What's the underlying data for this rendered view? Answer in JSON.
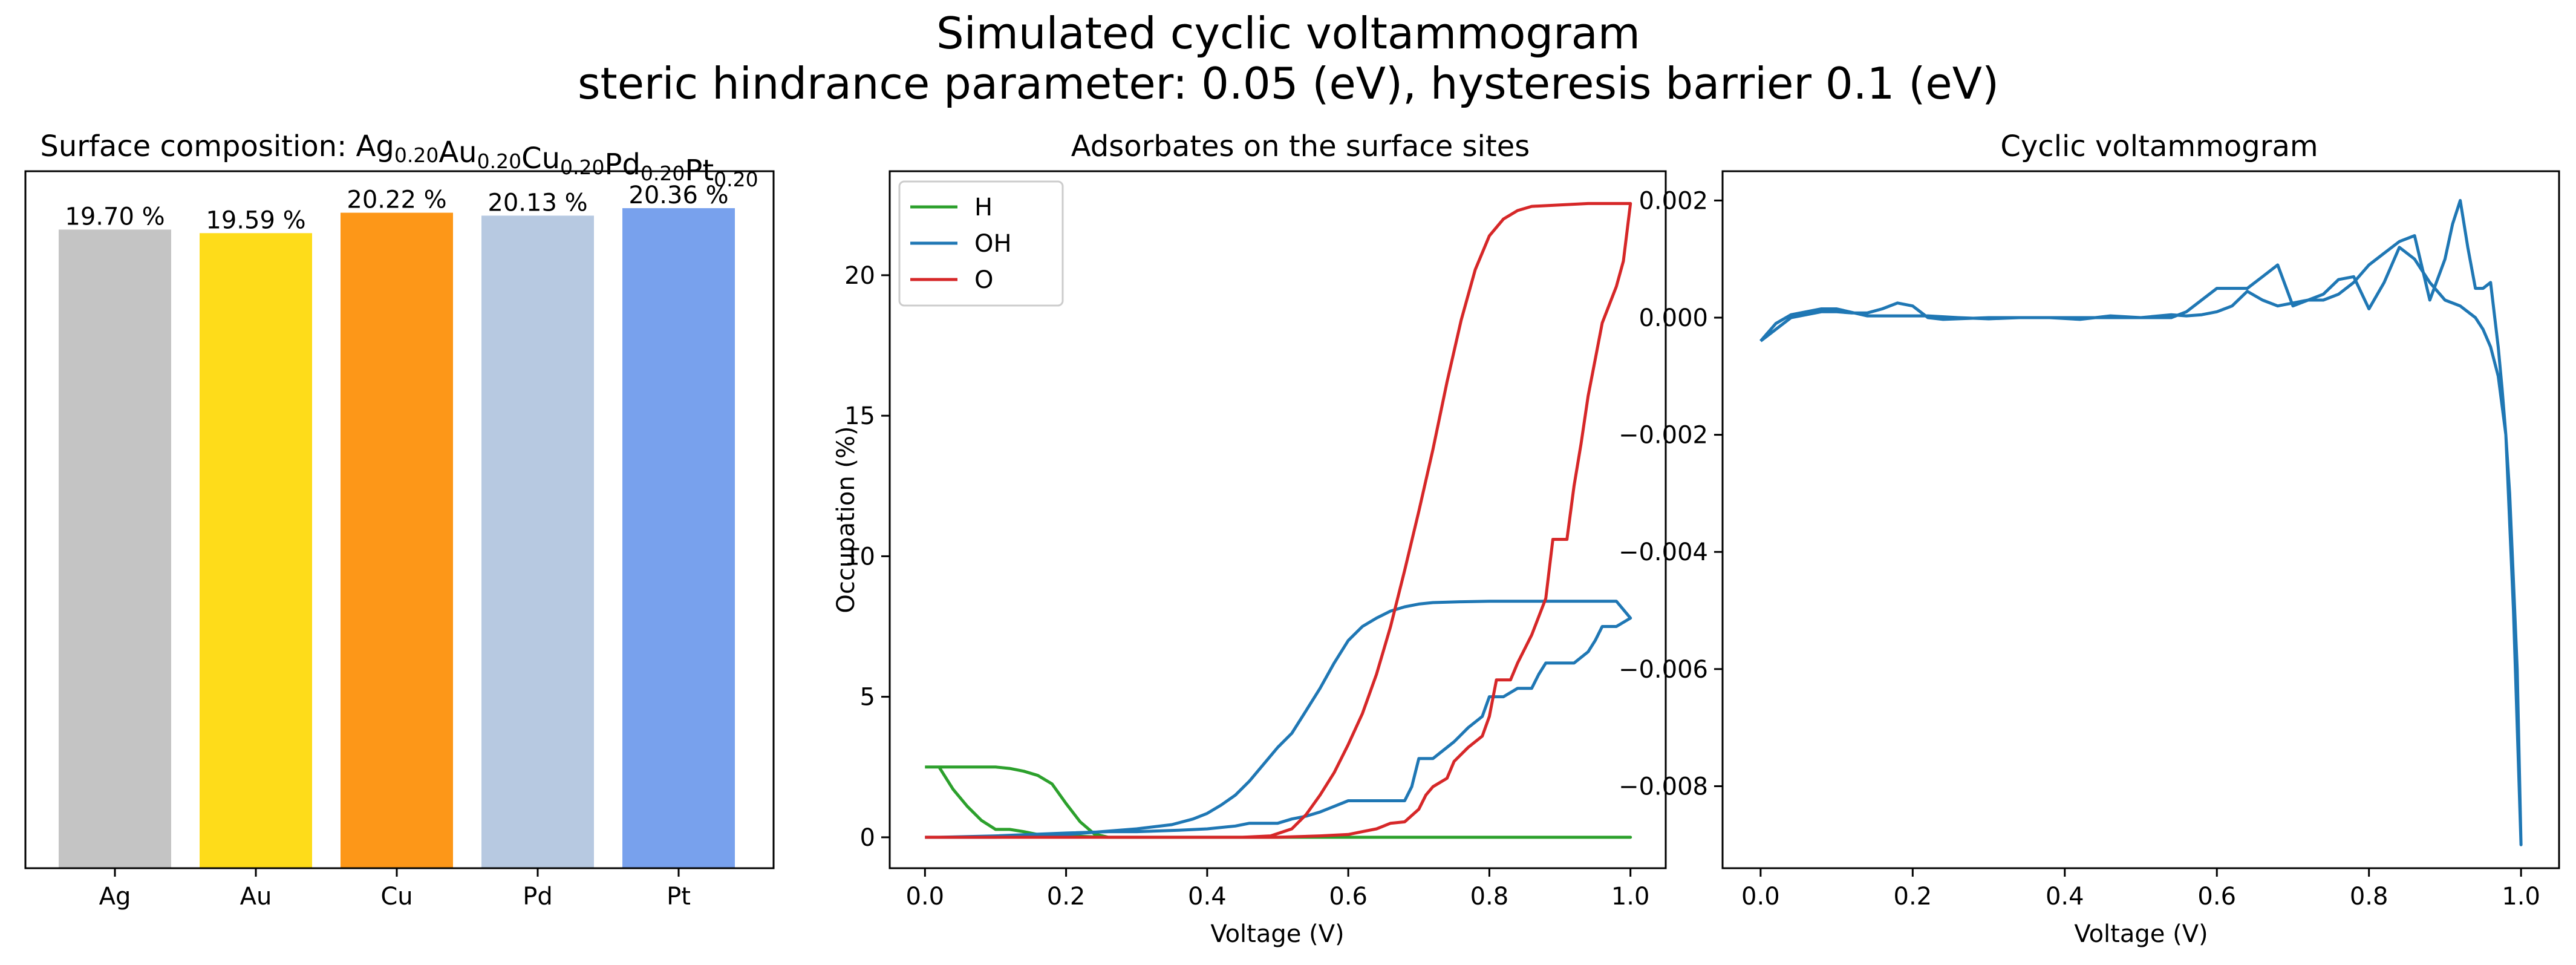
{
  "figure": {
    "title_line1": "Simulated cyclic voltammogram",
    "title_line2": "steric hindrance parameter: 0.05 (eV), hysteresis barrier 0.1 (eV)"
  },
  "chart_data": [
    {
      "type": "bar",
      "title_prefix": "Surface composition: ",
      "title_elements": [
        {
          "symbol": "Ag",
          "sub": "0.20"
        },
        {
          "symbol": "Au",
          "sub": "0.20"
        },
        {
          "symbol": "Cu",
          "sub": "0.20"
        },
        {
          "symbol": "Pd",
          "sub": "0.20"
        },
        {
          "symbol": "Pt",
          "sub": "0.20"
        }
      ],
      "categories": [
        "Ag",
        "Au",
        "Cu",
        "Pd",
        "Pt"
      ],
      "values": [
        19.7,
        19.59,
        20.22,
        20.13,
        20.36
      ],
      "data_labels": [
        "19.70 %",
        "19.59 %",
        "20.22 %",
        "20.13 %",
        "20.36 %"
      ],
      "colors": [
        "#c4c4c4",
        "#fedc1a",
        "#fd9718",
        "#b7c9e1",
        "#78a1ed"
      ],
      "ylim": [
        0,
        21.5
      ],
      "y_ticks_visible": false
    },
    {
      "type": "line",
      "title": "Adsorbates on the surface sites",
      "xlabel": "Voltage (V)",
      "ylabel": "Occupation (%)",
      "xlim": [
        -0.05,
        1.05
      ],
      "ylim": [
        -1.1,
        23.7
      ],
      "x_ticks": [
        "0.0",
        "0.2",
        "0.4",
        "0.6",
        "0.8",
        "1.0"
      ],
      "x_tick_values": [
        0,
        0.2,
        0.4,
        0.6,
        0.8,
        1.0
      ],
      "y_ticks": [
        "0",
        "5",
        "10",
        "15",
        "20"
      ],
      "y_tick_values": [
        0,
        5,
        10,
        15,
        20
      ],
      "legend_position": "top-left",
      "series": [
        {
          "name": "H",
          "color": "#2ca02c",
          "points": [
            [
              0,
              2.5
            ],
            [
              0.02,
              2.5
            ],
            [
              0.04,
              2.5
            ],
            [
              0.06,
              2.5
            ],
            [
              0.1,
              2.5
            ],
            [
              0.12,
              2.45
            ],
            [
              0.14,
              2.35
            ],
            [
              0.16,
              2.2
            ],
            [
              0.18,
              1.9
            ],
            [
              0.2,
              1.2
            ],
            [
              0.22,
              0.55
            ],
            [
              0.24,
              0.12
            ],
            [
              0.26,
              0.0
            ],
            [
              1.0,
              0.0
            ],
            [
              0.5,
              0.0
            ],
            [
              0.26,
              0.0
            ],
            [
              0.2,
              0.05
            ],
            [
              0.16,
              0.1
            ],
            [
              0.14,
              0.2
            ],
            [
              0.12,
              0.28
            ],
            [
              0.1,
              0.28
            ],
            [
              0.08,
              0.6
            ],
            [
              0.06,
              1.1
            ],
            [
              0.04,
              1.7
            ],
            [
              0.02,
              2.5
            ]
          ]
        },
        {
          "name": "OH",
          "color": "#1f77b4",
          "points": [
            [
              0,
              0
            ],
            [
              0.1,
              0
            ],
            [
              0.2,
              0.1
            ],
            [
              0.25,
              0.2
            ],
            [
              0.3,
              0.3
            ],
            [
              0.35,
              0.45
            ],
            [
              0.38,
              0.65
            ],
            [
              0.4,
              0.85
            ],
            [
              0.42,
              1.15
            ],
            [
              0.44,
              1.5
            ],
            [
              0.46,
              2.0
            ],
            [
              0.48,
              2.6
            ],
            [
              0.5,
              3.2
            ],
            [
              0.52,
              3.7
            ],
            [
              0.54,
              4.5
            ],
            [
              0.56,
              5.3
            ],
            [
              0.58,
              6.2
            ],
            [
              0.6,
              7.0
            ],
            [
              0.62,
              7.5
            ],
            [
              0.64,
              7.8
            ],
            [
              0.66,
              8.05
            ],
            [
              0.68,
              8.2
            ],
            [
              0.7,
              8.3
            ],
            [
              0.72,
              8.35
            ],
            [
              0.76,
              8.38
            ],
            [
              0.8,
              8.4
            ],
            [
              0.9,
              8.4
            ],
            [
              0.98,
              8.4
            ],
            [
              1.0,
              7.8
            ],
            [
              0.98,
              7.5
            ],
            [
              0.96,
              7.5
            ],
            [
              0.95,
              7.0
            ],
            [
              0.94,
              6.6
            ],
            [
              0.92,
              6.2
            ],
            [
              0.91,
              6.2
            ],
            [
              0.9,
              6.2
            ],
            [
              0.88,
              6.2
            ],
            [
              0.87,
              5.8
            ],
            [
              0.86,
              5.3
            ],
            [
              0.84,
              5.3
            ],
            [
              0.82,
              5.0
            ],
            [
              0.81,
              5.0
            ],
            [
              0.8,
              5.0
            ],
            [
              0.79,
              4.3
            ],
            [
              0.77,
              3.9
            ],
            [
              0.75,
              3.4
            ],
            [
              0.73,
              3.0
            ],
            [
              0.72,
              2.8
            ],
            [
              0.71,
              2.8
            ],
            [
              0.7,
              2.8
            ],
            [
              0.69,
              1.8
            ],
            [
              0.68,
              1.3
            ],
            [
              0.66,
              1.3
            ],
            [
              0.62,
              1.3
            ],
            [
              0.6,
              1.3
            ],
            [
              0.58,
              1.1
            ],
            [
              0.56,
              0.9
            ],
            [
              0.54,
              0.75
            ],
            [
              0.52,
              0.65
            ],
            [
              0.5,
              0.5
            ],
            [
              0.46,
              0.5
            ],
            [
              0.44,
              0.4
            ],
            [
              0.4,
              0.3
            ],
            [
              0.36,
              0.25
            ],
            [
              0.3,
              0.2
            ],
            [
              0.26,
              0.2
            ],
            [
              0.2,
              0.15
            ],
            [
              0.1,
              0.05
            ],
            [
              0.02,
              0.0
            ]
          ]
        },
        {
          "name": "O",
          "color": "#d62728",
          "points": [
            [
              0,
              0
            ],
            [
              0.45,
              0
            ],
            [
              0.49,
              0.05
            ],
            [
              0.52,
              0.3
            ],
            [
              0.54,
              0.8
            ],
            [
              0.56,
              1.5
            ],
            [
              0.58,
              2.3
            ],
            [
              0.6,
              3.3
            ],
            [
              0.62,
              4.4
            ],
            [
              0.64,
              5.8
            ],
            [
              0.66,
              7.5
            ],
            [
              0.68,
              9.5
            ],
            [
              0.7,
              11.6
            ],
            [
              0.72,
              13.8
            ],
            [
              0.74,
              16.2
            ],
            [
              0.76,
              18.4
            ],
            [
              0.78,
              20.2
            ],
            [
              0.8,
              21.4
            ],
            [
              0.82,
              22.0
            ],
            [
              0.84,
              22.3
            ],
            [
              0.86,
              22.45
            ],
            [
              0.9,
              22.5
            ],
            [
              0.94,
              22.55
            ],
            [
              0.98,
              22.55
            ],
            [
              1.0,
              22.55
            ],
            [
              0.99,
              20.5
            ],
            [
              0.98,
              19.6
            ],
            [
              0.96,
              18.3
            ],
            [
              0.95,
              17.0
            ],
            [
              0.94,
              15.7
            ],
            [
              0.93,
              14.0
            ],
            [
              0.92,
              12.5
            ],
            [
              0.91,
              10.6
            ],
            [
              0.9,
              10.6
            ],
            [
              0.89,
              10.6
            ],
            [
              0.88,
              8.5
            ],
            [
              0.86,
              7.2
            ],
            [
              0.84,
              6.2
            ],
            [
              0.83,
              5.6
            ],
            [
              0.82,
              5.6
            ],
            [
              0.81,
              5.6
            ],
            [
              0.8,
              4.3
            ],
            [
              0.79,
              3.6
            ],
            [
              0.77,
              3.2
            ],
            [
              0.75,
              2.7
            ],
            [
              0.74,
              2.1
            ],
            [
              0.72,
              1.8
            ],
            [
              0.71,
              1.5
            ],
            [
              0.7,
              1.0
            ],
            [
              0.68,
              0.55
            ],
            [
              0.66,
              0.5
            ],
            [
              0.64,
              0.3
            ],
            [
              0.62,
              0.2
            ],
            [
              0.6,
              0.1
            ],
            [
              0.56,
              0.05
            ],
            [
              0.5,
              0
            ],
            [
              0,
              0
            ]
          ]
        }
      ]
    },
    {
      "type": "line",
      "title": "Cyclic voltammogram",
      "xlabel": "Voltage (V)",
      "ylabel": "",
      "xlim": [
        -0.05,
        1.05
      ],
      "ylim": [
        -0.0094,
        0.0025
      ],
      "x_ticks": [
        "0.0",
        "0.2",
        "0.4",
        "0.6",
        "0.8",
        "1.0"
      ],
      "x_tick_values": [
        0,
        0.2,
        0.4,
        0.6,
        0.8,
        1.0
      ],
      "y_ticks": [
        "0.002",
        "0.000",
        "−0.002",
        "−0.004",
        "−0.006",
        "−0.008"
      ],
      "y_tick_values": [
        0.002,
        0.0,
        -0.002,
        -0.004,
        -0.006,
        -0.008
      ],
      "series": [
        {
          "name": "",
          "color": "#1f77b4",
          "points": [
            [
              0,
              -0.0004
            ],
            [
              0.02,
              -0.0002
            ],
            [
              0.04,
              0.0
            ],
            [
              0.06,
              5e-05
            ],
            [
              0.08,
              0.0001
            ],
            [
              0.1,
              0.0001
            ],
            [
              0.12,
              8e-05
            ],
            [
              0.14,
              8e-05
            ],
            [
              0.16,
              0.00015
            ],
            [
              0.18,
              0.00025
            ],
            [
              0.2,
              0.0002
            ],
            [
              0.22,
              0.0
            ],
            [
              0.24,
              -3e-05
            ],
            [
              0.3,
              0.0
            ],
            [
              0.36,
              0.0
            ],
            [
              0.4,
              0.0
            ],
            [
              0.44,
              0.0
            ],
            [
              0.48,
              0.0
            ],
            [
              0.5,
              0.0
            ],
            [
              0.54,
              5e-05
            ],
            [
              0.56,
              3e-05
            ],
            [
              0.58,
              5e-05
            ],
            [
              0.6,
              0.0001
            ],
            [
              0.62,
              0.0002
            ],
            [
              0.64,
              0.00045
            ],
            [
              0.66,
              0.0003
            ],
            [
              0.68,
              0.0002
            ],
            [
              0.7,
              0.00025
            ],
            [
              0.72,
              0.0003
            ],
            [
              0.74,
              0.0004
            ],
            [
              0.76,
              0.00065
            ],
            [
              0.78,
              0.0007
            ],
            [
              0.8,
              0.00015
            ],
            [
              0.82,
              0.0006
            ],
            [
              0.84,
              0.0012
            ],
            [
              0.86,
              0.001
            ],
            [
              0.88,
              0.0006
            ],
            [
              0.9,
              0.0003
            ],
            [
              0.92,
              0.0002
            ],
            [
              0.94,
              0.0
            ],
            [
              0.95,
              -0.0002
            ],
            [
              0.96,
              -0.0005
            ],
            [
              0.97,
              -0.001
            ],
            [
              0.98,
              -0.002
            ],
            [
              0.99,
              -0.005
            ],
            [
              1.0,
              -0.009
            ],
            [
              0.995,
              -0.006
            ],
            [
              0.99,
              -0.0045
            ],
            [
              0.985,
              -0.003
            ],
            [
              0.98,
              -0.002
            ],
            [
              0.975,
              -0.0012
            ],
            [
              0.97,
              -0.0005
            ],
            [
              0.96,
              0.0006
            ],
            [
              0.95,
              0.0005
            ],
            [
              0.94,
              0.0005
            ],
            [
              0.93,
              0.0012
            ],
            [
              0.92,
              0.002
            ],
            [
              0.91,
              0.0016
            ],
            [
              0.9,
              0.001
            ],
            [
              0.88,
              0.0003
            ],
            [
              0.86,
              0.0014
            ],
            [
              0.84,
              0.0013
            ],
            [
              0.82,
              0.0011
            ],
            [
              0.8,
              0.0009
            ],
            [
              0.78,
              0.0006
            ],
            [
              0.76,
              0.0004
            ],
            [
              0.74,
              0.0003
            ],
            [
              0.72,
              0.0003
            ],
            [
              0.7,
              0.0002
            ],
            [
              0.68,
              0.0009
            ],
            [
              0.66,
              0.0007
            ],
            [
              0.64,
              0.0005
            ],
            [
              0.62,
              0.0005
            ],
            [
              0.6,
              0.0005
            ],
            [
              0.56,
              0.0001
            ],
            [
              0.54,
              0.0
            ],
            [
              0.5,
              0.0
            ],
            [
              0.46,
              3e-05
            ],
            [
              0.42,
              -3e-05
            ],
            [
              0.38,
              0.0
            ],
            [
              0.34,
              0.0
            ],
            [
              0.3,
              -2e-05
            ],
            [
              0.26,
              0.0
            ],
            [
              0.22,
              3e-05
            ],
            [
              0.18,
              3e-05
            ],
            [
              0.14,
              3e-05
            ],
            [
              0.1,
              0.00015
            ],
            [
              0.08,
              0.00015
            ],
            [
              0.06,
              0.0001
            ],
            [
              0.04,
              5e-05
            ],
            [
              0.02,
              -0.0001
            ],
            [
              0,
              -0.0004
            ]
          ]
        }
      ]
    }
  ]
}
